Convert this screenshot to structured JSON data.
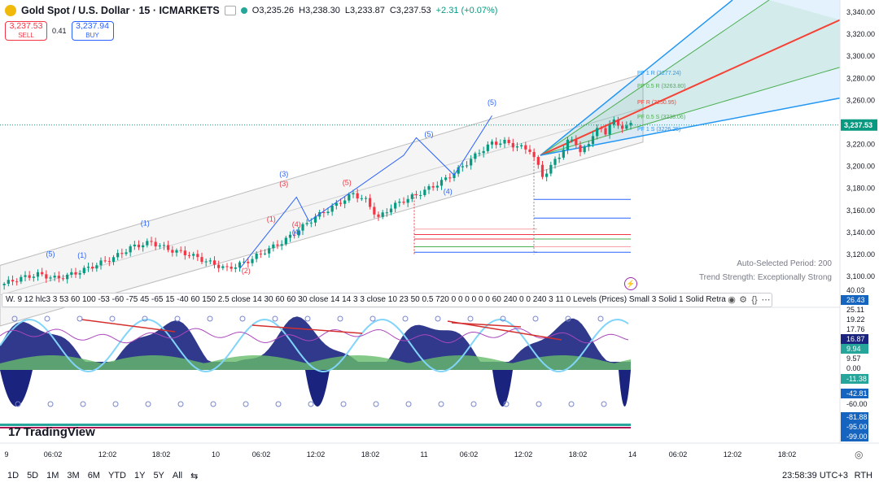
{
  "header": {
    "symbol": "Gold Spot / U.S. Dollar · 15 · ICMARKETS",
    "open": "O3,235.26",
    "high": "H3,238.30",
    "low": "L3,233.87",
    "close": "C3,237.53",
    "change": "+2.31 (+0.07%)"
  },
  "trade": {
    "sell_price": "3,237.53",
    "sell_label": "SELL",
    "spread": "0.41",
    "buy_price": "3,237.94",
    "buy_label": "BUY"
  },
  "indicator_bar": {
    "text": "W. 9 12 hlc3 3 53 60 100 -53 -60 -75 45 -65 15 -40 60 150 2.5 close 14 30 60 60 30 close 14 14 3 3 close 10 23 50 0.5 720 0 0 0 0 0 0 60 240 0 0 240 3 11 0 Levels (Prices) Small 3 Solid 1 Solid Retraceme..."
  },
  "info": {
    "period": "Auto-Selected Period: 200",
    "strength": "Trend Strength: Exceptionally Strong"
  },
  "branding": "TradingView",
  "footer": {
    "ranges": [
      "1D",
      "5D",
      "1M",
      "3M",
      "6M",
      "YTD",
      "1Y",
      "5Y",
      "All"
    ],
    "clock": "23:58:39 UTC+3",
    "rth": "RTH"
  },
  "colors": {
    "up": "#089981",
    "down": "#f23645",
    "blue_line": "#2962ff",
    "fan_blue": "#2196f3",
    "fan_green": "#4caf50",
    "fan_red": "#f44336",
    "osc_navy": "#1a237e",
    "osc_green": "#66bb6a"
  },
  "chart_data": {
    "type": "candlestick",
    "symbol": "XAUUSD",
    "timeframe": "15",
    "price_axis": {
      "ticks": [
        3100,
        3120,
        3140,
        3160,
        3180,
        3200,
        3220,
        3240,
        3260,
        3280,
        3300,
        3320,
        3340
      ],
      "tick_labels": [
        "3,100.00",
        "3,120.00",
        "3,140.00",
        "3,160.00",
        "3,180.00",
        "3,200.00",
        "3,220.00",
        "3,240.00",
        "3,260.00",
        "3,280.00",
        "3,300.00",
        "3,320.00",
        "3,340.00"
      ],
      "last_price": 3237.53,
      "last_label": "3,237.53"
    },
    "time_axis": {
      "labels": [
        "9",
        "06:02",
        "12:02",
        "18:02",
        "10",
        "06:02",
        "12:02",
        "18:02",
        "11",
        "06:02",
        "12:02",
        "18:02",
        "14",
        "06:02",
        "12:02",
        "18:02"
      ]
    },
    "price_path": [
      [
        0.0,
        3092
      ],
      [
        0.03,
        3098
      ],
      [
        0.06,
        3102
      ],
      [
        0.09,
        3098
      ],
      [
        0.12,
        3103
      ],
      [
        0.15,
        3110
      ],
      [
        0.18,
        3117
      ],
      [
        0.21,
        3127
      ],
      [
        0.24,
        3131
      ],
      [
        0.27,
        3124
      ],
      [
        0.3,
        3120
      ],
      [
        0.33,
        3113
      ],
      [
        0.36,
        3107
      ],
      [
        0.39,
        3113
      ],
      [
        0.42,
        3123
      ],
      [
        0.45,
        3132
      ],
      [
        0.47,
        3141
      ],
      [
        0.5,
        3154
      ],
      [
        0.53,
        3164
      ],
      [
        0.56,
        3175
      ],
      [
        0.58,
        3169
      ],
      [
        0.6,
        3153
      ],
      [
        0.62,
        3163
      ],
      [
        0.64,
        3169
      ],
      [
        0.66,
        3174
      ],
      [
        0.68,
        3180
      ],
      [
        0.7,
        3186
      ],
      [
        0.72,
        3194
      ],
      [
        0.74,
        3203
      ],
      [
        0.76,
        3213
      ],
      [
        0.78,
        3221
      ],
      [
        0.8,
        3222
      ],
      [
        0.82,
        3218
      ],
      [
        0.84,
        3215
      ],
      [
        0.86,
        3192
      ],
      [
        0.87,
        3196
      ],
      [
        0.88,
        3206
      ],
      [
        0.89,
        3212
      ],
      [
        0.9,
        3222
      ],
      [
        0.91,
        3226
      ],
      [
        0.92,
        3212
      ],
      [
        0.93,
        3218
      ],
      [
        0.94,
        3229
      ],
      [
        0.95,
        3235
      ],
      [
        0.96,
        3231
      ],
      [
        0.97,
        3242
      ],
      [
        0.98,
        3237
      ],
      [
        0.99,
        3236
      ],
      [
        1.0,
        3237.5
      ]
    ],
    "wave_labels": [
      {
        "text": "(5)",
        "color": "blue",
        "x": 0.08,
        "price": 3118
      },
      {
        "text": "(1)",
        "color": "blue",
        "x": 0.13,
        "price": 3117
      },
      {
        "text": "(1)",
        "color": "blue",
        "x": 0.23,
        "price": 3146
      },
      {
        "text": "(2)",
        "color": "red",
        "x": 0.39,
        "price": 3103
      },
      {
        "text": "(1)",
        "color": "red",
        "x": 0.43,
        "price": 3150
      },
      {
        "text": "(3)",
        "color": "blue",
        "x": 0.45,
        "price": 3191
      },
      {
        "text": "(3)",
        "color": "red",
        "x": 0.45,
        "price": 3182
      },
      {
        "text": "(4)",
        "color": "red",
        "x": 0.47,
        "price": 3145
      },
      {
        "text": "(4)",
        "color": "blue",
        "x": 0.47,
        "price": 3138
      },
      {
        "text": "(5)",
        "color": "red",
        "x": 0.55,
        "price": 3183
      },
      {
        "text": "(5)",
        "color": "blue",
        "x": 0.68,
        "price": 3227
      },
      {
        "text": "(4)",
        "color": "blue",
        "x": 0.71,
        "price": 3175
      },
      {
        "text": "(5)",
        "color": "blue",
        "x": 0.78,
        "price": 3256
      }
    ],
    "pitchfork_labels": [
      {
        "text": "PF 1 R (3277.24)",
        "color": "blue",
        "price": 3277.24
      },
      {
        "text": "PF 0.5 R (3263.80)",
        "color": "green",
        "price": 3263.8
      },
      {
        "text": "PF R (3250.95)",
        "color": "red",
        "price": 3250.95
      },
      {
        "text": "PF 0.5 S (3238.06)",
        "color": "green",
        "price": 3238.06
      },
      {
        "text": "PF 1 S (3226.25)",
        "color": "blue",
        "price": 3226.25
      }
    ],
    "oscillator_axis": {
      "labels": [
        "40.03",
        "26.43",
        "25.11",
        "19.22",
        "17.76",
        "16.87",
        "9.94",
        "9.57",
        "0.00",
        "-11.38",
        "-42.81",
        "-60.00",
        "-81.88",
        "-95.00",
        "-99.00"
      ]
    }
  }
}
